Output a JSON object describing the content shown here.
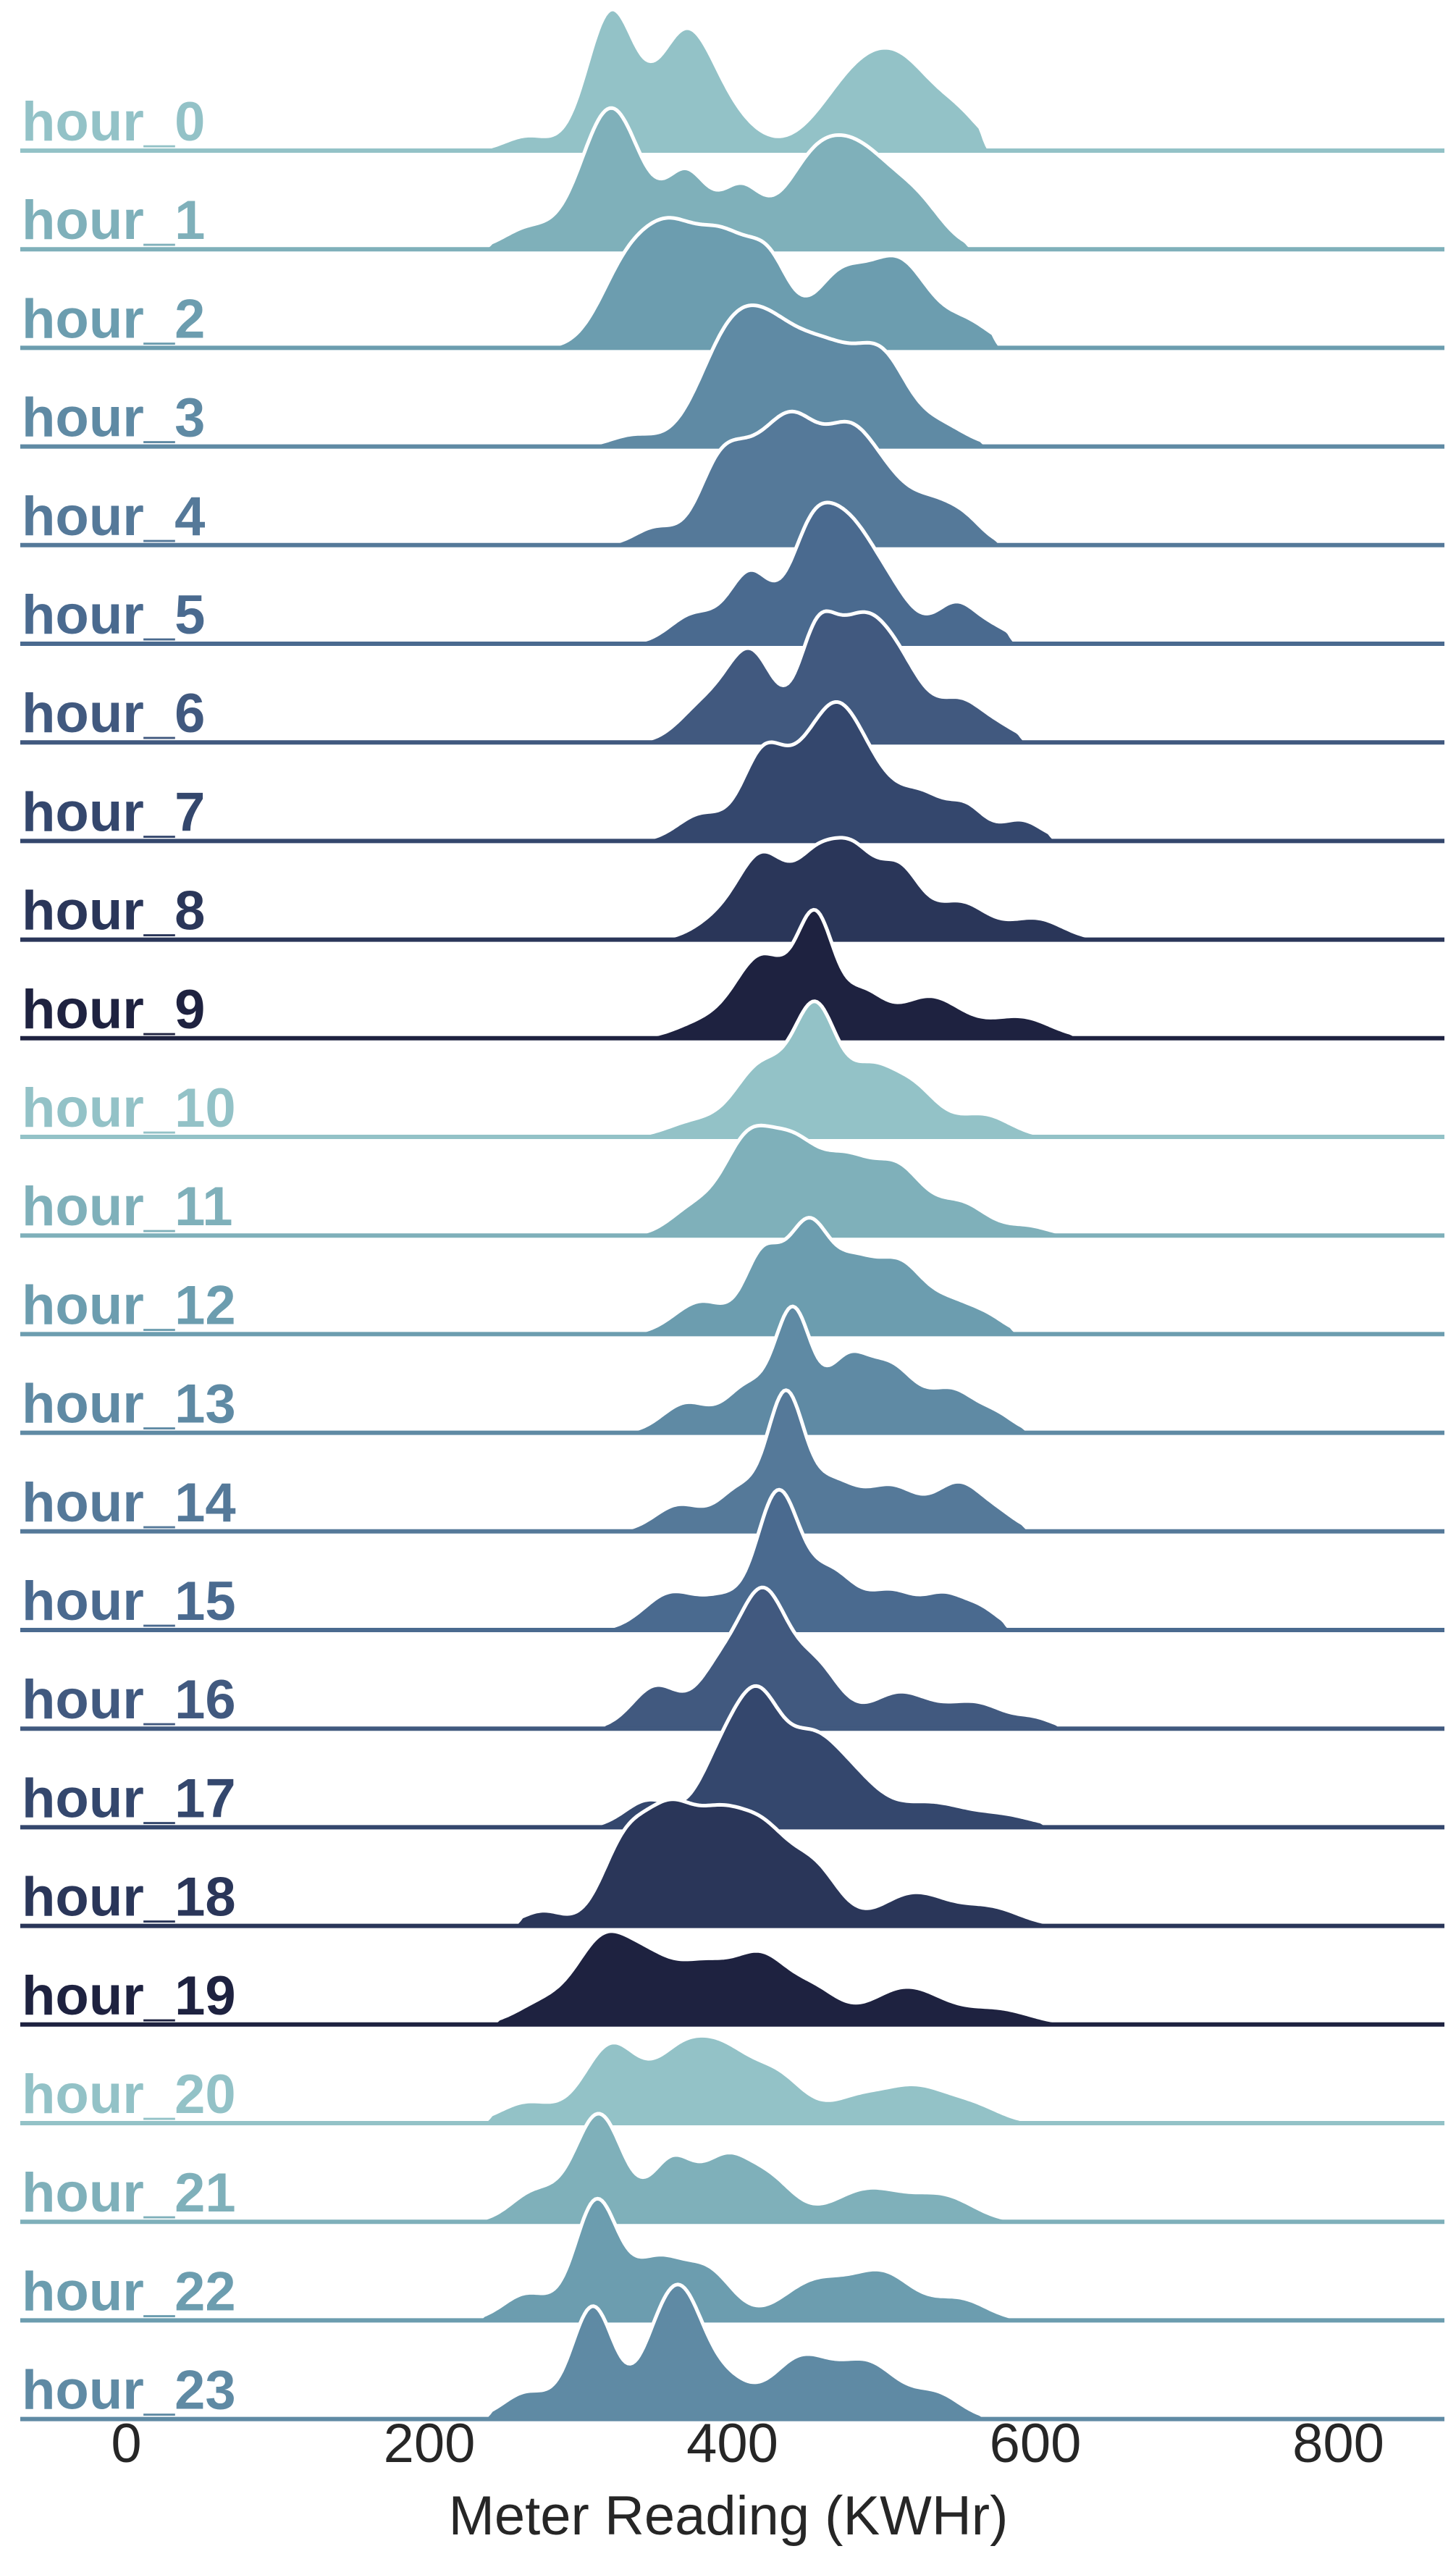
{
  "chart_data": {
    "type": "ridgeline",
    "xlabel": "Meter Reading (KWHr)",
    "xlim": [
      -70,
      870
    ],
    "xticks": [
      0,
      200,
      400,
      600,
      800
    ],
    "tick_labels": [
      "0",
      "200",
      "400",
      "600",
      "800"
    ],
    "colors": [
      "#93c2c7",
      "#7fb0ba",
      "#6c9daf",
      "#5f8aa4",
      "#557999",
      "#4a6a8f",
      "#41597f",
      "#34476d",
      "#2a3659",
      "#1e2240"
    ],
    "series": [
      {
        "label": "hour_0",
        "extent": [
          235,
          570
        ],
        "peaks": [
          [
            320,
            0.95,
            16
          ],
          [
            368,
            0.74,
            18
          ],
          [
            395,
            0.22,
            20
          ],
          [
            480,
            0.42,
            24
          ],
          [
            515,
            0.5,
            24
          ],
          [
            552,
            0.13,
            14
          ],
          [
            265,
            0.1,
            15
          ]
        ]
      },
      {
        "label": "hour_1",
        "extent": [
          235,
          560
        ],
        "peaks": [
          [
            320,
            0.98,
            20
          ],
          [
            370,
            0.5,
            14
          ],
          [
            405,
            0.4,
            14
          ],
          [
            450,
            0.4,
            20
          ],
          [
            485,
            0.65,
            26
          ],
          [
            525,
            0.18,
            16
          ],
          [
            265,
            0.14,
            16
          ]
        ]
      },
      {
        "label": "hour_2",
        "extent": [
          245,
          578
        ],
        "peaks": [
          [
            330,
            0.5,
            18
          ],
          [
            360,
            0.65,
            18
          ],
          [
            395,
            0.66,
            18
          ],
          [
            425,
            0.48,
            14
          ],
          [
            470,
            0.45,
            18
          ],
          [
            510,
            0.57,
            20
          ],
          [
            555,
            0.16,
            16
          ]
        ]
      },
      {
        "label": "hour_3",
        "extent": [
          300,
          570
        ],
        "peaks": [
          [
            395,
            0.72,
            20
          ],
          [
            425,
            0.85,
            22
          ],
          [
            460,
            0.5,
            20
          ],
          [
            500,
            0.65,
            16
          ],
          [
            475,
            0.28,
            18
          ],
          [
            535,
            0.2,
            18
          ],
          [
            335,
            0.1,
            15
          ]
        ]
      },
      {
        "label": "hour_4",
        "extent": [
          315,
          580
        ],
        "peaks": [
          [
            390,
            0.42,
            14
          ],
          [
            410,
            0.38,
            16
          ],
          [
            440,
            0.78,
            18
          ],
          [
            475,
            0.52,
            16
          ],
          [
            500,
            0.42,
            20
          ],
          [
            535,
            0.2,
            14
          ],
          [
            555,
            0.13,
            12
          ],
          [
            350,
            0.12,
            14
          ]
        ]
      },
      {
        "label": "hour_5",
        "extent": [
          320,
          588
        ],
        "peaks": [
          [
            375,
            0.22,
            16
          ],
          [
            412,
            0.52,
            14
          ],
          [
            450,
            0.6,
            14
          ],
          [
            475,
            0.82,
            18
          ],
          [
            505,
            0.3,
            16
          ],
          [
            548,
            0.3,
            14
          ],
          [
            575,
            0.09,
            12
          ]
        ]
      },
      {
        "label": "hour_6",
        "extent": [
          330,
          595
        ],
        "peaks": [
          [
            380,
            0.22,
            16
          ],
          [
            412,
            0.6,
            16
          ],
          [
            455,
            0.55,
            12
          ],
          [
            485,
            0.8,
            20
          ],
          [
            515,
            0.3,
            16
          ],
          [
            550,
            0.25,
            14
          ],
          [
            575,
            0.1,
            14
          ]
        ]
      },
      {
        "label": "hour_7",
        "extent": [
          330,
          615
        ],
        "peaks": [
          [
            380,
            0.18,
            16
          ],
          [
            420,
            0.55,
            14
          ],
          [
            450,
            0.48,
            16
          ],
          [
            470,
            0.52,
            14
          ],
          [
            490,
            0.42,
            16
          ],
          [
            525,
            0.3,
            16
          ],
          [
            555,
            0.2,
            12
          ],
          [
            590,
            0.14,
            14
          ]
        ]
      },
      {
        "label": "hour_8",
        "extent": [
          330,
          640
        ],
        "peaks": [
          [
            390,
            0.12,
            16
          ],
          [
            420,
            0.55,
            16
          ],
          [
            455,
            0.48,
            14
          ],
          [
            480,
            0.52,
            14
          ],
          [
            510,
            0.45,
            14
          ],
          [
            550,
            0.25,
            18
          ],
          [
            600,
            0.14,
            18
          ]
        ]
      },
      {
        "label": "hour_9",
        "extent": [
          305,
          630
        ],
        "peaks": [
          [
            380,
            0.1,
            18
          ],
          [
            420,
            0.55,
            18
          ],
          [
            455,
            0.75,
            12
          ],
          [
            485,
            0.28,
            14
          ],
          [
            530,
            0.28,
            22
          ],
          [
            590,
            0.14,
            20
          ]
        ]
      },
      {
        "label": "hour_10",
        "extent": [
          330,
          630
        ],
        "peaks": [
          [
            375,
            0.1,
            18
          ],
          [
            420,
            0.48,
            18
          ],
          [
            455,
            0.8,
            14
          ],
          [
            490,
            0.42,
            16
          ],
          [
            520,
            0.3,
            16
          ],
          [
            565,
            0.15,
            18
          ]
        ]
      },
      {
        "label": "hour_11",
        "extent": [
          320,
          620
        ],
        "peaks": [
          [
            375,
            0.18,
            16
          ],
          [
            410,
            0.6,
            16
          ],
          [
            440,
            0.52,
            16
          ],
          [
            475,
            0.48,
            18
          ],
          [
            510,
            0.4,
            16
          ],
          [
            550,
            0.22,
            18
          ],
          [
            595,
            0.06,
            14
          ]
        ]
      },
      {
        "label": "hour_12",
        "extent": [
          320,
          590
        ],
        "peaks": [
          [
            380,
            0.22,
            18
          ],
          [
            420,
            0.5,
            12
          ],
          [
            450,
            0.72,
            14
          ],
          [
            480,
            0.4,
            14
          ],
          [
            510,
            0.45,
            16
          ],
          [
            545,
            0.2,
            16
          ],
          [
            570,
            0.08,
            12
          ]
        ]
      },
      {
        "label": "hour_13",
        "extent": [
          320,
          598
        ],
        "peaks": [
          [
            370,
            0.2,
            16
          ],
          [
            410,
            0.3,
            14
          ],
          [
            440,
            0.8,
            12
          ],
          [
            475,
            0.45,
            14
          ],
          [
            505,
            0.42,
            16
          ],
          [
            545,
            0.28,
            16
          ],
          [
            575,
            0.1,
            12
          ]
        ]
      },
      {
        "label": "hour_14",
        "extent": [
          320,
          598
        ],
        "peaks": [
          [
            365,
            0.18,
            16
          ],
          [
            405,
            0.28,
            14
          ],
          [
            435,
            0.88,
            12
          ],
          [
            465,
            0.32,
            16
          ],
          [
            505,
            0.3,
            18
          ],
          [
            550,
            0.32,
            16
          ],
          [
            578,
            0.08,
            12
          ]
        ]
      },
      {
        "label": "hour_15",
        "extent": [
          305,
          585
        ],
        "peaks": [
          [
            360,
            0.25,
            18
          ],
          [
            395,
            0.18,
            14
          ],
          [
            430,
            0.9,
            14
          ],
          [
            465,
            0.38,
            16
          ],
          [
            505,
            0.25,
            16
          ],
          [
            540,
            0.22,
            14
          ],
          [
            565,
            0.12,
            12
          ]
        ]
      },
      {
        "label": "hour_16",
        "extent": [
          310,
          620
        ],
        "peaks": [
          [
            350,
            0.3,
            16
          ],
          [
            390,
            0.35,
            14
          ],
          [
            420,
            0.92,
            16
          ],
          [
            455,
            0.42,
            16
          ],
          [
            510,
            0.25,
            20
          ],
          [
            560,
            0.18,
            20
          ],
          [
            600,
            0.06,
            12
          ]
        ]
      },
      {
        "label": "hour_17",
        "extent": [
          305,
          610
        ],
        "peaks": [
          [
            345,
            0.2,
            16
          ],
          [
            395,
            0.55,
            16
          ],
          [
            418,
            0.72,
            14
          ],
          [
            450,
            0.6,
            18
          ],
          [
            480,
            0.3,
            18
          ],
          [
            530,
            0.18,
            24
          ],
          [
            580,
            0.08,
            20
          ]
        ]
      },
      {
        "label": "hour_18",
        "extent": [
          255,
          620
        ],
        "peaks": [
          [
            275,
            0.1,
            14
          ],
          [
            330,
            0.55,
            16
          ],
          [
            360,
            0.66,
            16
          ],
          [
            390,
            0.55,
            16
          ],
          [
            420,
            0.6,
            18
          ],
          [
            455,
            0.35,
            16
          ],
          [
            520,
            0.22,
            22
          ],
          [
            570,
            0.12,
            20
          ]
        ]
      },
      {
        "label": "hour_19",
        "extent": [
          240,
          620
        ],
        "peaks": [
          [
            275,
            0.14,
            18
          ],
          [
            315,
            0.55,
            18
          ],
          [
            345,
            0.3,
            16
          ],
          [
            380,
            0.38,
            20
          ],
          [
            420,
            0.42,
            18
          ],
          [
            455,
            0.2,
            16
          ],
          [
            515,
            0.25,
            24
          ],
          [
            575,
            0.1,
            22
          ]
        ]
      },
      {
        "label": "hour_20",
        "extent": [
          235,
          610
        ],
        "peaks": [
          [
            265,
            0.14,
            18
          ],
          [
            320,
            0.52,
            18
          ],
          [
            365,
            0.42,
            18
          ],
          [
            395,
            0.4,
            18
          ],
          [
            430,
            0.3,
            18
          ],
          [
            480,
            0.14,
            18
          ],
          [
            520,
            0.24,
            22
          ],
          [
            560,
            0.1,
            18
          ]
        ]
      },
      {
        "label": "hour_21",
        "extent": [
          230,
          600
        ],
        "peaks": [
          [
            270,
            0.2,
            16
          ],
          [
            312,
            0.72,
            16
          ],
          [
            360,
            0.4,
            14
          ],
          [
            395,
            0.4,
            16
          ],
          [
            425,
            0.26,
            16
          ],
          [
            490,
            0.22,
            24
          ],
          [
            540,
            0.16,
            20
          ]
        ]
      },
      {
        "label": "hour_22",
        "extent": [
          230,
          590
        ],
        "peaks": [
          [
            265,
            0.18,
            16
          ],
          [
            310,
            0.78,
            14
          ],
          [
            350,
            0.4,
            18
          ],
          [
            385,
            0.3,
            16
          ],
          [
            455,
            0.26,
            22
          ],
          [
            500,
            0.3,
            20
          ],
          [
            550,
            0.14,
            18
          ]
        ]
      },
      {
        "label": "hour_23",
        "extent": [
          235,
          570
        ],
        "peaks": [
          [
            265,
            0.18,
            16
          ],
          [
            308,
            0.75,
            14
          ],
          [
            350,
            0.4,
            14
          ],
          [
            368,
            0.65,
            14
          ],
          [
            395,
            0.25,
            16
          ],
          [
            445,
            0.4,
            20
          ],
          [
            490,
            0.36,
            20
          ],
          [
            535,
            0.16,
            16
          ]
        ]
      }
    ]
  }
}
